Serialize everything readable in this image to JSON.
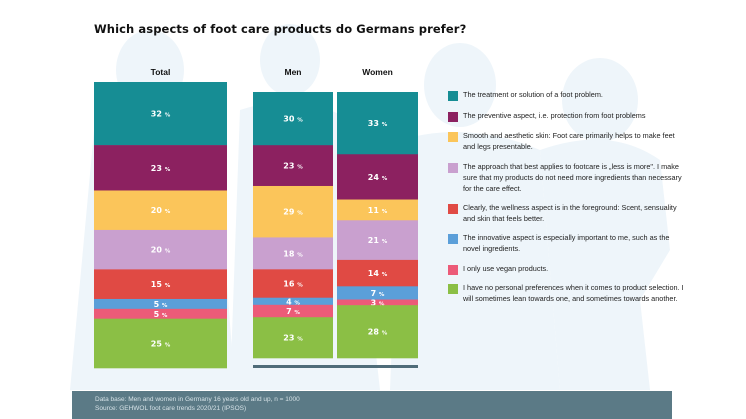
{
  "title": "Which aspects of foot care products do Germans prefer?",
  "chart_data": {
    "type": "bar",
    "stacked": true,
    "orientation": "vertical",
    "title": "Which aspects of foot care products do Germans prefer?",
    "unit": "%",
    "categories": [
      "Total",
      "Men",
      "Women"
    ],
    "series": [
      {
        "name": "The treatment or solution of a foot problem.",
        "color": "#168d94",
        "values": [
          32,
          30,
          33
        ]
      },
      {
        "name": "The preventive aspect, i.e. protection from foot problems",
        "color": "#8c2160",
        "values": [
          23,
          23,
          24
        ]
      },
      {
        "name": "Smooth and aesthetic skin: Foot care primarily helps to make feet and legs presentable.",
        "color": "#fbc55a",
        "values": [
          20,
          29,
          11
        ]
      },
      {
        "name": "The approach that best applies to footcare is „less is more\". I make sure that my products do not need more ingredients than necessary for the care effect.",
        "color": "#c9a0cf",
        "values": [
          20,
          18,
          21
        ]
      },
      {
        "name": "Clearly, the wellness aspect is in the foreground: Scent, sensuality and skin that feels better.",
        "color": "#e04a44",
        "values": [
          15,
          16,
          14
        ]
      },
      {
        "name": "The innovative aspect is especially important to me, such as the novel ingredients.",
        "color": "#5b9fd9",
        "values": [
          5,
          4,
          7
        ]
      },
      {
        "name": "I only use vegan products.",
        "color": "#ec5b78",
        "values": [
          5,
          7,
          3
        ]
      },
      {
        "name": "I have no personal preferences when it comes to product selection. I will sometimes lean towards one, and sometimes towards another.",
        "color": "#8bbf45",
        "values": [
          25,
          23,
          28
        ]
      }
    ],
    "legend_position": "right",
    "grid": false
  },
  "legend": [
    {
      "label": "The treatment or solution of a foot problem.",
      "color": "#168d94"
    },
    {
      "label": "The preventive aspect, i.e. protection from foot problems",
      "color": "#8c2160"
    },
    {
      "label": "Smooth and aesthetic skin: Foot care primarily helps to make feet and legs presentable.",
      "color": "#fbc55a"
    },
    {
      "label": "The approach that best applies to footcare is „less is more\". I make sure that my products do not need more ingredients than necessary for the care effect.",
      "color": "#c9a0cf"
    },
    {
      "label": "Clearly, the wellness aspect is in the foreground: Scent, sensuality and skin that feels better.",
      "color": "#e04a44"
    },
    {
      "label": "The innovative aspect is especially important to me, such as the novel ingredients.",
      "color": "#5b9fd9"
    },
    {
      "label": "I only use vegan products.",
      "color": "#ec5b78"
    },
    {
      "label": "I have no personal preferences when it comes to product selection. I will sometimes lean towards one, and sometimes towards another.",
      "color": "#8bbf45"
    }
  ],
  "footer": {
    "line1": "Data base: Men and women in Germany 16 years old and up, n = 1000",
    "line2": "Source: GEHWOL foot care trends 2020/21 (IPSOS)",
    "background": "#5b7a86"
  }
}
